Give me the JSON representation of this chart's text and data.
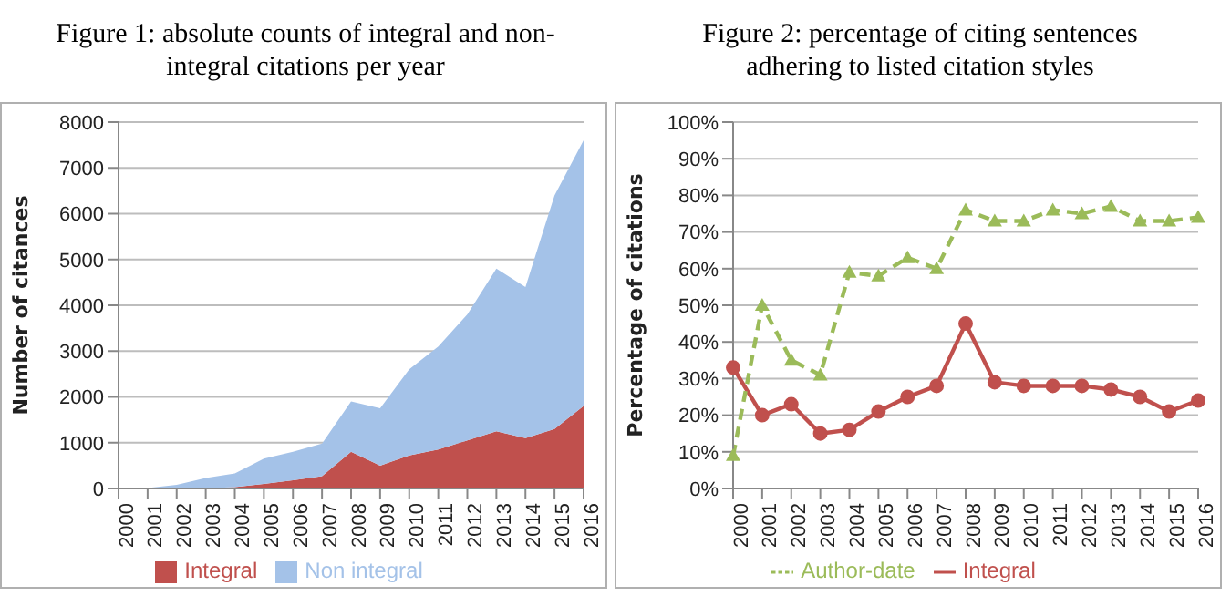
{
  "chart_data": [
    {
      "type": "area",
      "title": "Figure 1: absolute counts of integral and non-integral citations per year",
      "ylabel": "Number of citances",
      "stacked": true,
      "grid": "y",
      "legend": "bottom",
      "categories": [
        "2000",
        "2001",
        "2002",
        "2003",
        "2004",
        "2005",
        "2006",
        "2007",
        "2008",
        "2009",
        "2010",
        "2011",
        "2012",
        "2013",
        "2014",
        "2015",
        "2016"
      ],
      "ylim": [
        0,
        8000
      ],
      "yticks": [
        0,
        1000,
        2000,
        3000,
        4000,
        5000,
        6000,
        7000,
        8000
      ],
      "series": [
        {
          "name": "Integral",
          "color": "#c0504d",
          "values": [
            0,
            0,
            0,
            0,
            30,
            100,
            180,
            270,
            800,
            500,
            720,
            850,
            1050,
            1250,
            1100,
            1300,
            1800
          ]
        },
        {
          "name": "Non integral",
          "color": "#a4c2e8",
          "values": [
            0,
            10,
            80,
            230,
            300,
            550,
            620,
            710,
            1100,
            1250,
            1880,
            2250,
            2750,
            3550,
            3300,
            5100,
            5800
          ]
        }
      ]
    },
    {
      "type": "line",
      "title": "Figure 2: percentage of citing sentences adhering to listed citation styles",
      "ylabel": "Percentage of citations",
      "grid": "y",
      "legend": "bottom",
      "categories": [
        "2000",
        "2001",
        "2002",
        "2003",
        "2004",
        "2005",
        "2006",
        "2007",
        "2008",
        "2009",
        "2010",
        "2011",
        "2012",
        "2013",
        "2014",
        "2015",
        "2016"
      ],
      "ylim": [
        0,
        100
      ],
      "yticks": [
        {
          "value": 0,
          "label": "0%"
        },
        {
          "value": 10,
          "label": "10%"
        },
        {
          "value": 20,
          "label": "20%"
        },
        {
          "value": 30,
          "label": "30%"
        },
        {
          "value": 40,
          "label": "40%"
        },
        {
          "value": 50,
          "label": "50%"
        },
        {
          "value": 60,
          "label": "60%"
        },
        {
          "value": 70,
          "label": "70%"
        },
        {
          "value": 80,
          "label": "80%"
        },
        {
          "value": 90,
          "label": "90%"
        },
        {
          "value": 100,
          "label": "100%"
        }
      ],
      "series": [
        {
          "name": "Integral",
          "color": "#c0504d",
          "marker": "circle",
          "line_style": "solid",
          "values": [
            33,
            20,
            23,
            15,
            16,
            21,
            25,
            28,
            45,
            29,
            28,
            28,
            28,
            27,
            25,
            21,
            24
          ]
        },
        {
          "name": "Author-date",
          "color": "#9bbb59",
          "marker": "triangle",
          "line_style": "dashed",
          "values": [
            9,
            50,
            35,
            31,
            59,
            58,
            63,
            60,
            76,
            73,
            73,
            76,
            75,
            77,
            73,
            73,
            74
          ]
        }
      ]
    }
  ]
}
